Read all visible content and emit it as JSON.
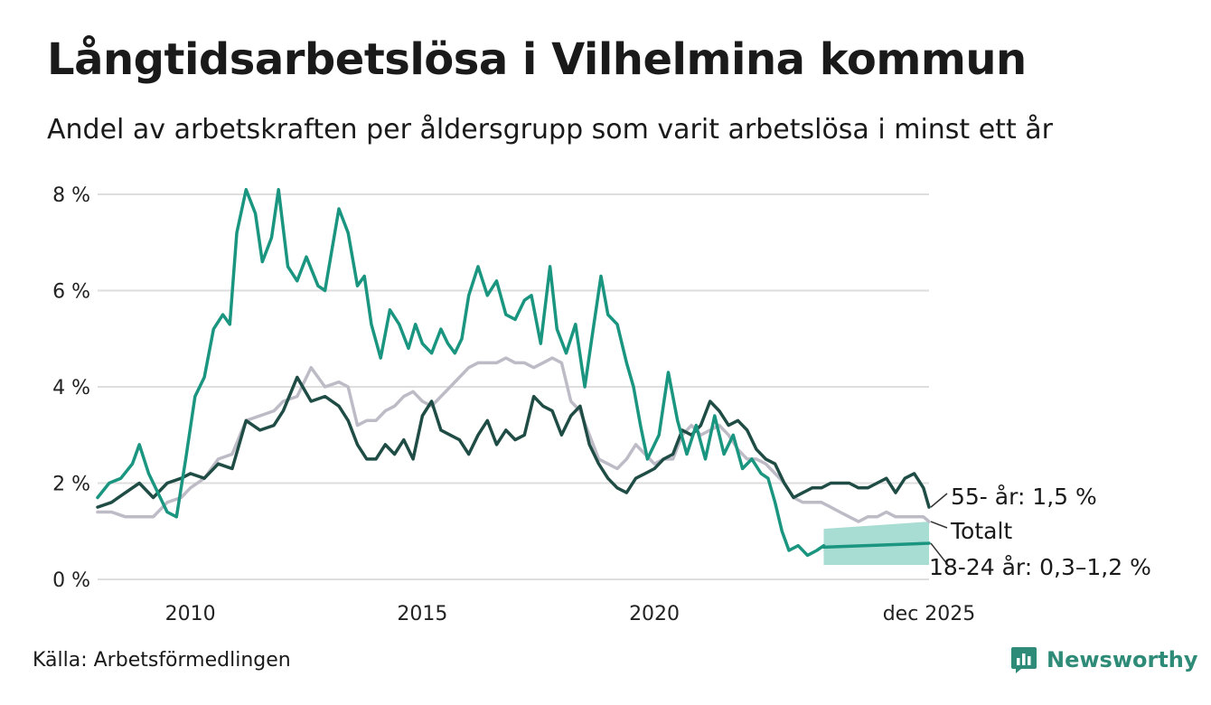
{
  "title": "Långtidsarbetslösa i Vilhelmina kommun",
  "subtitle": "Andel av arbetskraften per åldersgrupp som varit arbetslösa i minst ett år",
  "source": "Källa: Arbetsförmedlingen",
  "brand": "Newsworthy",
  "colors": {
    "young": "#1a9580",
    "old": "#1f4d45",
    "total": "#bdbbc6",
    "band": "#a8ddd3",
    "grid": "#dedede"
  },
  "chart_data": {
    "type": "line",
    "title": "Långtidsarbetslösa i Vilhelmina kommun",
    "xlabel": "",
    "ylabel": "",
    "xlim": [
      2008.0,
      2025.92
    ],
    "ylim": [
      0,
      8
    ],
    "y_ticks": [
      0,
      2,
      4,
      6,
      8
    ],
    "y_tick_labels": [
      "0 %",
      "2 %",
      "4 %",
      "6 %",
      "8 %"
    ],
    "x_ticks": [
      2010,
      2015,
      2020,
      2025.92
    ],
    "x_tick_labels": [
      "2010",
      "2015",
      "2020",
      "dec 2025"
    ],
    "grid": true,
    "series": [
      {
        "name": "18-24 år",
        "key": "young",
        "label": "18-24 år: 0,3–1,2 %",
        "x": [
          2008.0,
          2008.25,
          2008.5,
          2008.75,
          2008.9,
          2009.1,
          2009.3,
          2009.5,
          2009.7,
          2009.9,
          2010.1,
          2010.3,
          2010.5,
          2010.7,
          2010.85,
          2011.0,
          2011.2,
          2011.4,
          2011.55,
          2011.75,
          2011.9,
          2012.1,
          2012.3,
          2012.5,
          2012.75,
          2012.9,
          2013.2,
          2013.4,
          2013.6,
          2013.75,
          2013.9,
          2014.1,
          2014.3,
          2014.5,
          2014.7,
          2014.85,
          2015.0,
          2015.2,
          2015.4,
          2015.55,
          2015.7,
          2015.85,
          2016.0,
          2016.2,
          2016.4,
          2016.6,
          2016.8,
          2017.0,
          2017.2,
          2017.35,
          2017.55,
          2017.75,
          2017.9,
          2018.1,
          2018.3,
          2018.5,
          2018.65,
          2018.85,
          2019.0,
          2019.2,
          2019.4,
          2019.55,
          2019.7,
          2019.85,
          2020.1,
          2020.3,
          2020.5,
          2020.7,
          2020.9,
          2021.1,
          2021.3,
          2021.5,
          2021.7,
          2021.9,
          2022.1,
          2022.3,
          2022.45,
          2022.6,
          2022.75,
          2022.9,
          2023.1,
          2023.3,
          2023.5,
          2023.65
        ],
        "y": [
          1.7,
          2.0,
          2.1,
          2.4,
          2.8,
          2.2,
          1.8,
          1.4,
          1.3,
          2.5,
          3.8,
          4.2,
          5.2,
          5.5,
          5.3,
          7.2,
          8.1,
          7.6,
          6.6,
          7.1,
          8.1,
          6.5,
          6.2,
          6.7,
          6.1,
          6.0,
          7.7,
          7.2,
          6.1,
          6.3,
          5.3,
          4.6,
          5.6,
          5.3,
          4.8,
          5.3,
          4.9,
          4.7,
          5.2,
          4.9,
          4.7,
          5.0,
          5.9,
          6.5,
          5.9,
          6.2,
          5.5,
          5.4,
          5.8,
          5.9,
          4.9,
          6.5,
          5.2,
          4.7,
          5.3,
          4.0,
          5.0,
          6.3,
          5.5,
          5.3,
          4.5,
          4.0,
          3.2,
          2.5,
          3.0,
          4.3,
          3.3,
          2.6,
          3.2,
          2.5,
          3.4,
          2.6,
          3.0,
          2.3,
          2.5,
          2.2,
          2.1,
          1.6,
          1.0,
          0.6,
          0.7,
          0.5,
          0.6,
          0.7
        ],
        "forecast_x": [
          2023.65,
          2025.92
        ],
        "forecast_y": [
          0.67,
          0.75
        ],
        "band_low": [
          0.3,
          0.3
        ],
        "band_high": [
          1.05,
          1.2
        ]
      },
      {
        "name": "55- år",
        "key": "old",
        "label": "55- år: 1,5 %",
        "x": [
          2008.0,
          2008.3,
          2008.6,
          2008.9,
          2009.2,
          2009.5,
          2009.8,
          2010.0,
          2010.3,
          2010.6,
          2010.9,
          2011.2,
          2011.5,
          2011.8,
          2012.0,
          2012.3,
          2012.6,
          2012.9,
          2013.2,
          2013.4,
          2013.6,
          2013.8,
          2014.0,
          2014.2,
          2014.4,
          2014.6,
          2014.8,
          2015.0,
          2015.2,
          2015.4,
          2015.6,
          2015.8,
          2016.0,
          2016.2,
          2016.4,
          2016.6,
          2016.8,
          2017.0,
          2017.2,
          2017.4,
          2017.6,
          2017.8,
          2018.0,
          2018.2,
          2018.4,
          2018.6,
          2018.8,
          2019.0,
          2019.2,
          2019.4,
          2019.6,
          2019.8,
          2020.0,
          2020.2,
          2020.4,
          2020.6,
          2020.8,
          2021.0,
          2021.2,
          2021.4,
          2021.6,
          2021.8,
          2022.0,
          2022.2,
          2022.4,
          2022.6,
          2022.8,
          2023.0,
          2023.2,
          2023.4,
          2023.6,
          2023.8,
          2024.0,
          2024.2,
          2024.4,
          2024.6,
          2024.8,
          2025.0,
          2025.2,
          2025.4,
          2025.6,
          2025.8,
          2025.92
        ],
        "y": [
          1.5,
          1.6,
          1.8,
          2.0,
          1.7,
          2.0,
          2.1,
          2.2,
          2.1,
          2.4,
          2.3,
          3.3,
          3.1,
          3.2,
          3.5,
          4.2,
          3.7,
          3.8,
          3.6,
          3.3,
          2.8,
          2.5,
          2.5,
          2.8,
          2.6,
          2.9,
          2.5,
          3.4,
          3.7,
          3.1,
          3.0,
          2.9,
          2.6,
          3.0,
          3.3,
          2.8,
          3.1,
          2.9,
          3.0,
          3.8,
          3.6,
          3.5,
          3.0,
          3.4,
          3.6,
          2.8,
          2.4,
          2.1,
          1.9,
          1.8,
          2.1,
          2.2,
          2.3,
          2.5,
          2.6,
          3.1,
          3.0,
          3.2,
          3.7,
          3.5,
          3.2,
          3.3,
          3.1,
          2.7,
          2.5,
          2.4,
          2.0,
          1.7,
          1.8,
          1.9,
          1.9,
          2.0,
          2.0,
          2.0,
          1.9,
          1.9,
          2.0,
          2.1,
          1.8,
          2.1,
          2.2,
          1.9,
          1.5
        ]
      },
      {
        "name": "Totalt",
        "key": "total",
        "label": "Totalt",
        "x": [
          2008.0,
          2008.3,
          2008.6,
          2008.9,
          2009.2,
          2009.5,
          2009.8,
          2010.0,
          2010.3,
          2010.6,
          2010.9,
          2011.2,
          2011.5,
          2011.8,
          2012.0,
          2012.3,
          2012.6,
          2012.9,
          2013.2,
          2013.4,
          2013.6,
          2013.8,
          2014.0,
          2014.2,
          2014.4,
          2014.6,
          2014.8,
          2015.0,
          2015.2,
          2015.4,
          2015.6,
          2015.8,
          2016.0,
          2016.2,
          2016.4,
          2016.6,
          2016.8,
          2017.0,
          2017.2,
          2017.4,
          2017.6,
          2017.8,
          2018.0,
          2018.2,
          2018.4,
          2018.6,
          2018.8,
          2019.0,
          2019.2,
          2019.4,
          2019.6,
          2019.8,
          2020.0,
          2020.2,
          2020.4,
          2020.6,
          2020.8,
          2021.0,
          2021.2,
          2021.4,
          2021.6,
          2021.8,
          2022.0,
          2022.2,
          2022.4,
          2022.6,
          2022.8,
          2023.0,
          2023.2,
          2023.4,
          2023.6,
          2023.8,
          2024.0,
          2024.2,
          2024.4,
          2024.6,
          2024.8,
          2025.0,
          2025.2,
          2025.4,
          2025.6,
          2025.8,
          2025.92
        ],
        "y": [
          1.4,
          1.4,
          1.3,
          1.3,
          1.3,
          1.6,
          1.7,
          1.9,
          2.1,
          2.5,
          2.6,
          3.3,
          3.4,
          3.5,
          3.7,
          3.8,
          4.4,
          4.0,
          4.1,
          4.0,
          3.2,
          3.3,
          3.3,
          3.5,
          3.6,
          3.8,
          3.9,
          3.7,
          3.6,
          3.8,
          4.0,
          4.2,
          4.4,
          4.5,
          4.5,
          4.5,
          4.6,
          4.5,
          4.5,
          4.4,
          4.5,
          4.6,
          4.5,
          3.7,
          3.5,
          3.0,
          2.5,
          2.4,
          2.3,
          2.5,
          2.8,
          2.6,
          2.4,
          2.5,
          2.5,
          3.0,
          3.2,
          3.0,
          3.1,
          3.2,
          3.0,
          2.7,
          2.5,
          2.5,
          2.4,
          2.2,
          2.0,
          1.7,
          1.6,
          1.6,
          1.6,
          1.5,
          1.4,
          1.3,
          1.2,
          1.3,
          1.3,
          1.4,
          1.3,
          1.3,
          1.3,
          1.3,
          1.2
        ]
      }
    ]
  }
}
